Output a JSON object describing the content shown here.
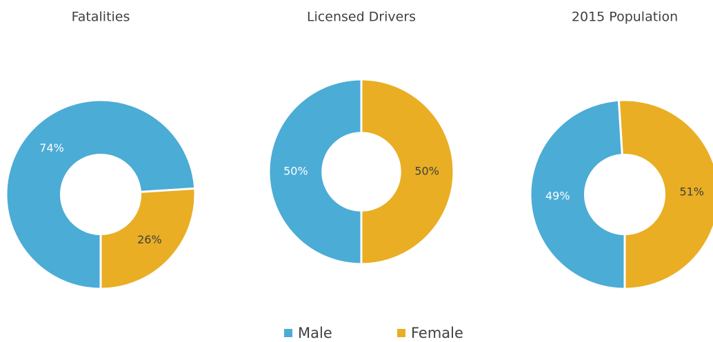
{
  "chart_data": [
    {
      "type": "donut",
      "title": "Fatalities",
      "values": [
        74,
        26
      ],
      "value_labels": [
        "74%",
        "26%"
      ]
    },
    {
      "type": "donut",
      "title": "Licensed Drivers",
      "values": [
        50,
        50
      ],
      "value_labels": [
        "50%",
        "50%"
      ]
    },
    {
      "type": "donut",
      "title": "2015 Population",
      "values": [
        49,
        51
      ],
      "value_labels": [
        "49%",
        "51%"
      ]
    }
  ],
  "legend": {
    "items": [
      {
        "name": "Male",
        "color": "#4bacd6",
        "label_color": "#ffffff"
      },
      {
        "name": "Female",
        "color": "#e9ae24",
        "label_color": "#404040"
      }
    ]
  }
}
